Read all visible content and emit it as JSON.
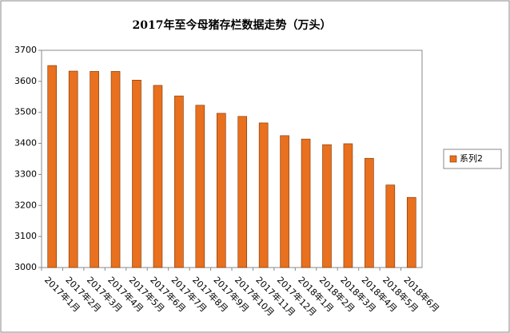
{
  "chart_data": {
    "type": "bar",
    "title": "2017年至今母猪存栏数据走势（万头）",
    "categories": [
      "2017年1月",
      "2017年2月",
      "2017年3月",
      "2017年4月",
      "2017年5月",
      "2017年6月",
      "2017年7月",
      "2017年8月",
      "2017年9月",
      "2017年10月",
      "2017年11月",
      "2017年12月",
      "2018年1月",
      "2018年2月",
      "2018年3月",
      "2018年4月",
      "2018年5月",
      "2018年6月"
    ],
    "series": [
      {
        "name": "系列2",
        "color": "#e8701e",
        "values": [
          3651,
          3633,
          3632,
          3632,
          3604,
          3587,
          3553,
          3523,
          3497,
          3487,
          3466,
          3425,
          3414,
          3396,
          3399,
          3352,
          3266,
          3226
        ]
      }
    ],
    "ylim": [
      3000,
      3700
    ],
    "yticks": [
      3000,
      3100,
      3200,
      3300,
      3400,
      3500,
      3600,
      3700
    ],
    "legend": "right"
  }
}
